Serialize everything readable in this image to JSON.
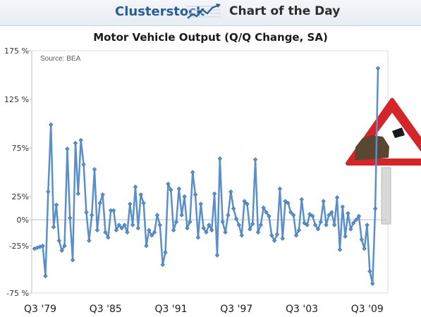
{
  "header": {
    "brand": "Clusterstock",
    "subtitle": "Chart of the Day",
    "logo_icon": "trend-chart-icon"
  },
  "chart_data": {
    "type": "line",
    "title": "Motor Vehicle Output (Q/Q Change, SA)",
    "source_note": "Source: BEA",
    "xlabel": "",
    "ylabel": "",
    "x_tick_labels": [
      "Q3 '79",
      "Q3 '85",
      "Q3 '91",
      "Q3 '97",
      "Q3 '03",
      "Q3 '09"
    ],
    "y_tick_labels": [
      "175 %",
      "125 %",
      "75%",
      "25%",
      "0%",
      "-25%",
      "-75 %"
    ],
    "y_ticks": [
      175,
      125,
      75,
      25,
      0,
      -25,
      -75
    ],
    "ylim": [
      -75,
      175
    ],
    "grid": false,
    "line_color": "#5b8fc7",
    "marker": "diamond",
    "series": [
      {
        "x_start": "Q3 1979",
        "frequency": "quarterly",
        "values": [
          -28,
          -27,
          -26,
          -25,
          -57,
          30,
          99,
          -7,
          16,
          -20,
          -30,
          -25,
          74,
          2,
          -40,
          80,
          28,
          83,
          58,
          8,
          -20,
          5,
          53,
          -10,
          18,
          27,
          -12,
          -17,
          10,
          10,
          -10,
          -5,
          -8,
          -5,
          -12,
          17,
          -5,
          35,
          -8,
          27,
          18,
          -25,
          -10,
          -15,
          -12,
          5,
          -5,
          -45,
          -32,
          38,
          32,
          -10,
          -2,
          33,
          5,
          25,
          -8,
          -2,
          50,
          27,
          -17,
          17,
          -8,
          -12,
          -5,
          -10,
          28,
          -35,
          64,
          -2,
          -12,
          5,
          30,
          12,
          1,
          -5,
          -15,
          20,
          17,
          -9,
          -4,
          63,
          -12,
          -5,
          13,
          8,
          4,
          -15,
          -20,
          -14,
          33,
          -18,
          20,
          18,
          8,
          5,
          -15,
          -10,
          22,
          -3,
          -5,
          6,
          4,
          -5,
          -9,
          -2,
          20,
          -5,
          5,
          8,
          -5,
          24,
          -29,
          14,
          -16,
          7,
          -9,
          -3,
          0,
          4,
          -19,
          -28,
          -5,
          -52,
          -65,
          12,
          157
        ]
      }
    ],
    "annotation": {
      "type": "warning-road-sign",
      "icon": "falling-rocks-warning-sign-icon",
      "colors": {
        "border": "#d3262a",
        "fill": "#ffffff",
        "symbol": "#1a1a1a",
        "rock": "#5a4631"
      }
    }
  }
}
